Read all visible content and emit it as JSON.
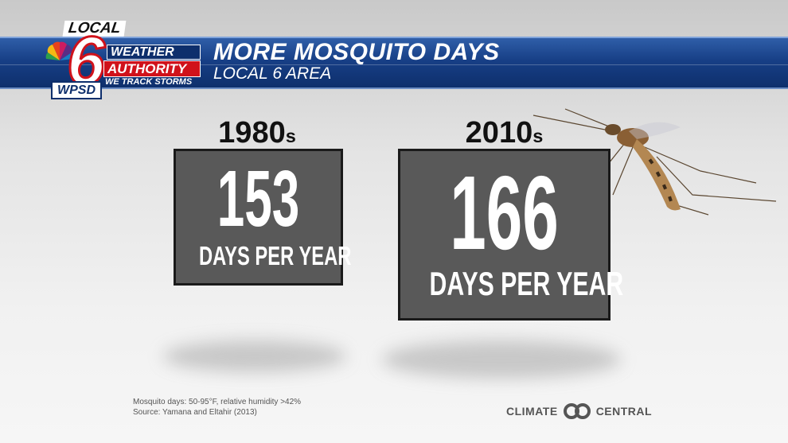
{
  "header": {
    "logo": {
      "local": "LOCAL",
      "number": "6",
      "wpsd": "WPSD",
      "weather": "WEATHER",
      "authority": "AUTHORITY",
      "tagline": "WE TRACK STORMS"
    },
    "title": "MORE MOSQUITO DAYS",
    "subtitle": "LOCAL 6 AREA"
  },
  "decades": [
    {
      "label": "1980",
      "suffix": "s",
      "value": "153",
      "unit": "DAYS PER YEAR"
    },
    {
      "label": "2010",
      "suffix": "s",
      "value": "166",
      "unit": "DAYS PER YEAR"
    }
  ],
  "footnote": {
    "line1": "Mosquito days: 50-95°F, relative humidity >42%",
    "line2": "Source: Yamana and Eltahir (2013)"
  },
  "branding": {
    "left": "CLIMATE",
    "right": "CENTRAL"
  },
  "colors": {
    "banner": "#173f86",
    "logo_red": "#d0121b",
    "box_fill": "#595959"
  }
}
